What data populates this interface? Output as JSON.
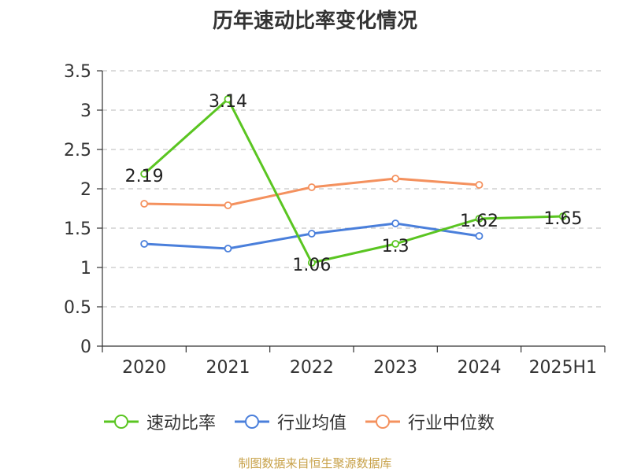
{
  "chart_data": {
    "type": "line",
    "title": "历年速动比率变化情况",
    "categories": [
      "2020",
      "2021",
      "2022",
      "2023",
      "2024",
      "2025H1"
    ],
    "ylim": [
      0,
      3.5
    ],
    "yticks": [
      "0",
      "0.5",
      "1",
      "1.5",
      "2",
      "2.5",
      "3",
      "3.5"
    ],
    "grid": true,
    "legend_position": "bottom",
    "series": [
      {
        "name": "速动比率",
        "color": "#5ac521",
        "values": [
          2.19,
          3.14,
          1.06,
          1.3,
          1.62,
          1.65
        ],
        "labels": [
          "2.19",
          "3.14",
          "1.06",
          "1.3",
          "1.62",
          "1.65"
        ]
      },
      {
        "name": "行业均值",
        "color": "#4a7fdb",
        "values": [
          1.3,
          1.24,
          1.43,
          1.56,
          1.4,
          null
        ]
      },
      {
        "name": "行业中位数",
        "color": "#f4915e",
        "values": [
          1.81,
          1.79,
          2.02,
          2.13,
          2.05,
          null
        ]
      }
    ]
  },
  "footer": {
    "source": "制图数据来自恒生聚源数据库"
  }
}
